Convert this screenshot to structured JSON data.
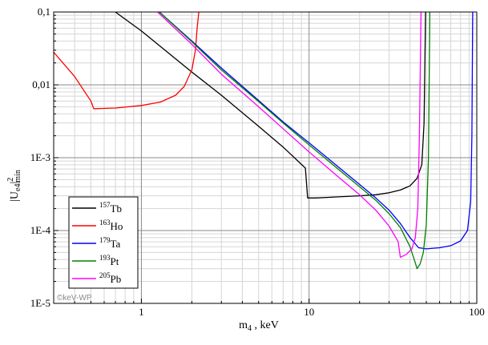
{
  "chart_data": {
    "type": "line",
    "title": "",
    "xlabel": {
      "main": "m",
      "sub": "4",
      "rest": " , keV"
    },
    "ylabel": {
      "main": "|U",
      "sub": "e4",
      "rest": "|",
      "sup": "2",
      "sub2": "min"
    },
    "xscale": "log",
    "yscale": "log",
    "xlim": [
      0.3,
      100
    ],
    "ylim": [
      1e-05,
      0.1
    ],
    "x_ticks": [
      {
        "v": 1,
        "label": "1"
      },
      {
        "v": 10,
        "label": "10"
      },
      {
        "v": 100,
        "label": "100"
      }
    ],
    "y_ticks": [
      {
        "v": 1e-05,
        "label": "1E-5"
      },
      {
        "v": 0.0001,
        "label": "1E-4"
      },
      {
        "v": 0.001,
        "label": "1E-3"
      },
      {
        "v": 0.01,
        "label": "0,01"
      },
      {
        "v": 0.1,
        "label": "0,1"
      }
    ],
    "grid": true,
    "legend_position": "bottom-left",
    "watermark": "©keV-WP",
    "series": [
      {
        "name": "Tb",
        "iso": "157",
        "color": "#000000",
        "x": [
          0.7,
          1,
          2,
          3,
          5,
          7,
          9.5,
          9.8,
          11,
          15,
          20,
          25,
          30,
          35,
          40,
          44,
          47,
          48.5,
          49.5
        ],
        "y": [
          0.1,
          0.055,
          0.015,
          0.0072,
          0.0027,
          0.0014,
          0.00072,
          0.00028,
          0.00028,
          0.00029,
          0.0003,
          0.00031,
          0.00033,
          0.00036,
          0.00041,
          0.00052,
          0.0008,
          0.003,
          0.1
        ]
      },
      {
        "name": "Ho",
        "iso": "163",
        "color": "#ff0000",
        "x": [
          0.3,
          0.4,
          0.5,
          0.52,
          0.7,
          1,
          1.3,
          1.6,
          1.8,
          2.0,
          2.1,
          2.15,
          2.2
        ],
        "y": [
          0.028,
          0.013,
          0.006,
          0.0047,
          0.0048,
          0.0052,
          0.0058,
          0.0072,
          0.0095,
          0.016,
          0.03,
          0.06,
          0.1
        ]
      },
      {
        "name": "Ta",
        "iso": "179",
        "color": "#0000ff",
        "x": [
          1.28,
          2,
          3,
          5,
          7,
          10,
          15,
          20,
          25,
          30,
          35,
          40,
          45,
          50,
          60,
          70,
          80,
          88,
          92,
          93.5,
          94.5
        ],
        "y": [
          0.1,
          0.04,
          0.017,
          0.0061,
          0.0031,
          0.0016,
          0.00074,
          0.00043,
          0.00028,
          0.00019,
          0.000125,
          8e-05,
          5.8e-05,
          5.6e-05,
          5.8e-05,
          6.2e-05,
          7.2e-05,
          0.0001,
          0.00025,
          0.002,
          0.1
        ]
      },
      {
        "name": "Pt",
        "iso": "193",
        "color": "#008000",
        "x": [
          1.28,
          2,
          3,
          5,
          7,
          10,
          15,
          20,
          25,
          30,
          35,
          40,
          43,
          44,
          46,
          48,
          50,
          51.5,
          52.5
        ],
        "y": [
          0.1,
          0.039,
          0.016,
          0.0059,
          0.003,
          0.0015,
          0.00069,
          0.0004,
          0.00026,
          0.00017,
          0.00011,
          6e-05,
          3.6e-05,
          3e-05,
          3.5e-05,
          5e-05,
          0.00012,
          0.001,
          0.1
        ]
      },
      {
        "name": "Pb",
        "iso": "205",
        "color": "#ff00ff",
        "x": [
          1.25,
          2,
          3,
          5,
          7,
          10,
          15,
          20,
          25,
          30,
          34,
          35,
          38,
          41,
          43,
          44.5,
          45.5,
          46.5
        ],
        "y": [
          0.1,
          0.036,
          0.014,
          0.005,
          0.0025,
          0.0012,
          0.00054,
          0.00031,
          0.00019,
          0.000115,
          7e-05,
          4.3e-05,
          4.7e-05,
          5.6e-05,
          8e-05,
          0.0002,
          0.002,
          0.1
        ]
      }
    ]
  }
}
